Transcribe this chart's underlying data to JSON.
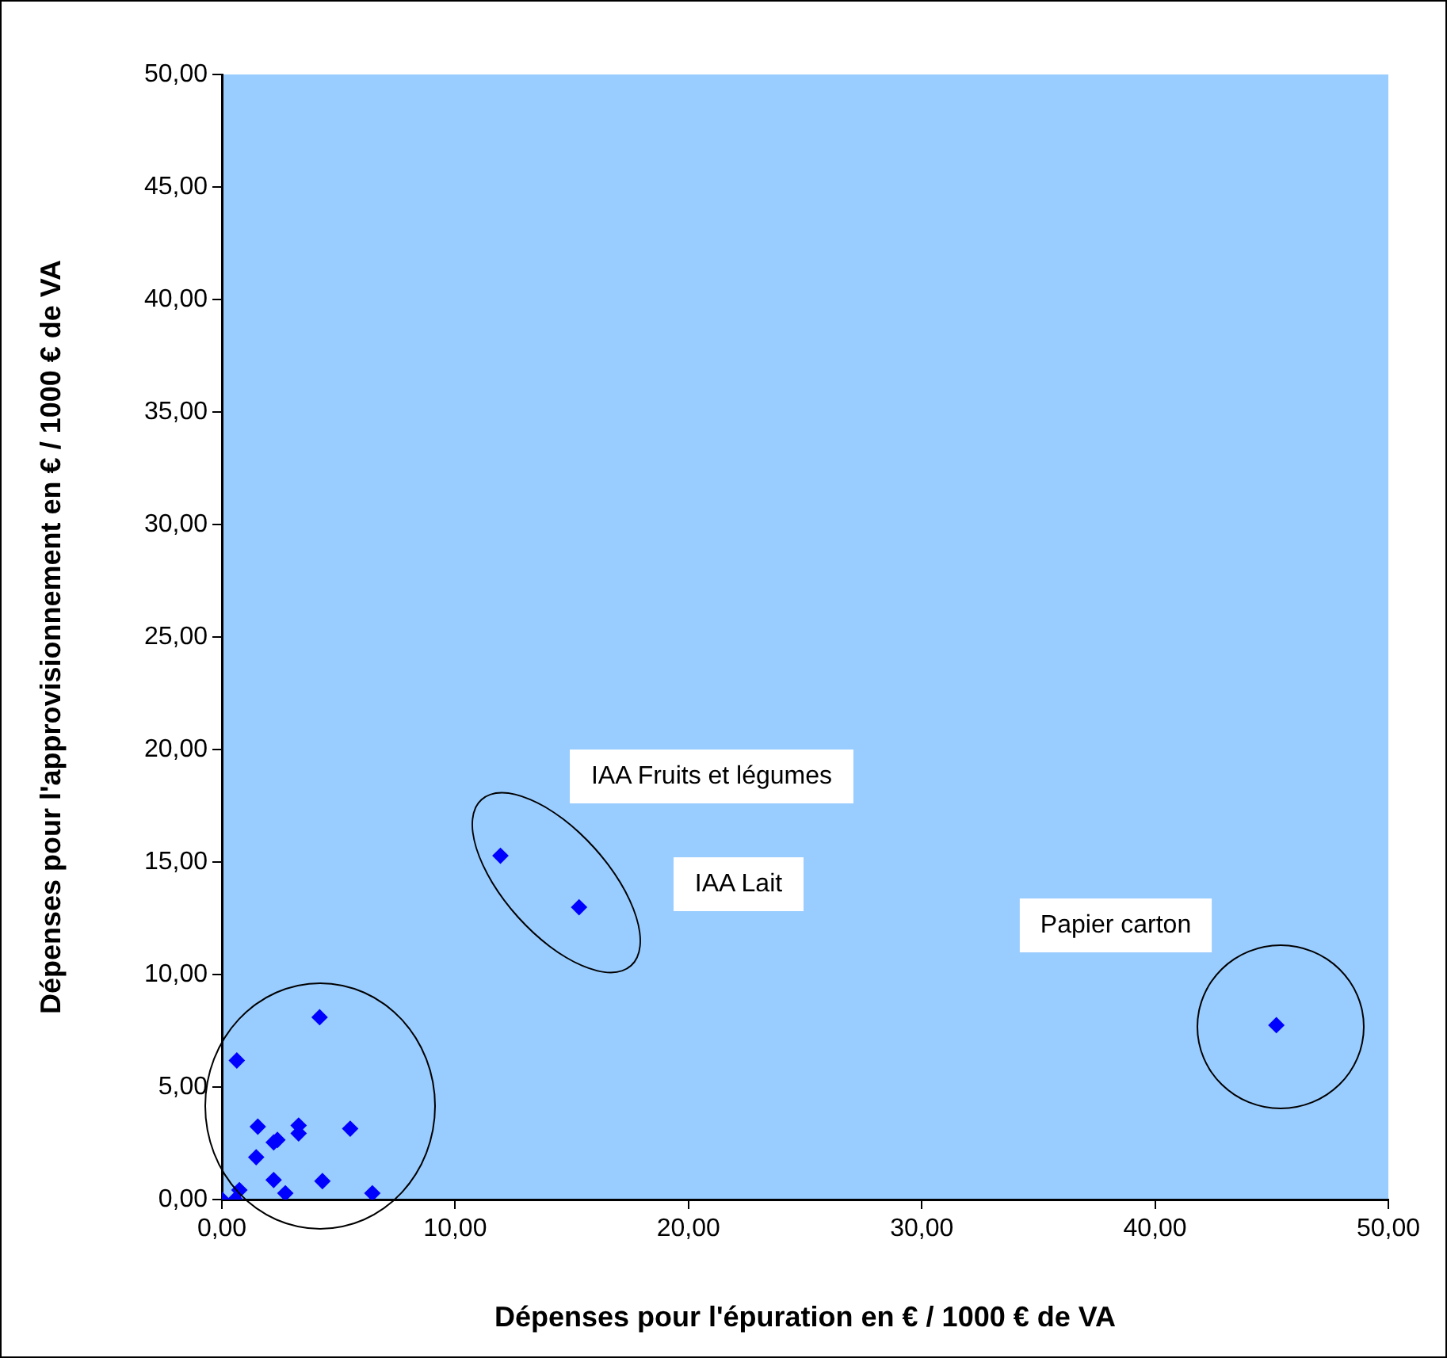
{
  "chart_data": {
    "type": "scatter",
    "xlabel": "Dépenses pour l'épuration en € / 1000 € de VA",
    "ylabel": "Dépenses pour l'approvisionnement en € / 1000 € de VA",
    "x": [
      0,
      0.57,
      0.75,
      0.64,
      1.47,
      1.54,
      2.22,
      2.22,
      2.38,
      2.72,
      3.29,
      3.29,
      4.19,
      4.31,
      5.5,
      6.45,
      11.94,
      15.31,
      45.2
    ],
    "series": [
      {
        "color": "#0000ff",
        "values": [
          0,
          0,
          0.42,
          6.18,
          1.88,
          3.24,
          0.87,
          2.54,
          2.65,
          0.28,
          3.29,
          2.94,
          8.1,
          0.82,
          3.15,
          0.28,
          15.28,
          12.99,
          7.75
        ]
      }
    ],
    "marker": "diamond",
    "grid": false,
    "legend": false,
    "xlim": [
      0,
      50
    ],
    "ylim": [
      0,
      50
    ],
    "xticks": [
      {
        "value": 0,
        "label": "0,00"
      },
      {
        "value": 10,
        "label": "10,00"
      },
      {
        "value": 20,
        "label": "20,00"
      },
      {
        "value": 30,
        "label": "30,00"
      },
      {
        "value": 40,
        "label": "40,00"
      },
      {
        "value": 50,
        "label": "50,00"
      }
    ],
    "yticks": [
      {
        "value": 0,
        "label": "0,00"
      },
      {
        "value": 5,
        "label": "5,00"
      },
      {
        "value": 10,
        "label": "10,00"
      },
      {
        "value": 15,
        "label": "15,00"
      },
      {
        "value": 20,
        "label": "20,00"
      },
      {
        "value": 25,
        "label": "25,00"
      },
      {
        "value": 30,
        "label": "30,00"
      },
      {
        "value": 35,
        "label": "35,00"
      },
      {
        "value": 40,
        "label": "40,00"
      },
      {
        "value": 45,
        "label": "45,00"
      },
      {
        "value": 50,
        "label": "50,00"
      }
    ],
    "annotations": [
      "IAA Fruits et légumes",
      "IAA Lait",
      "Papier carton"
    ]
  }
}
